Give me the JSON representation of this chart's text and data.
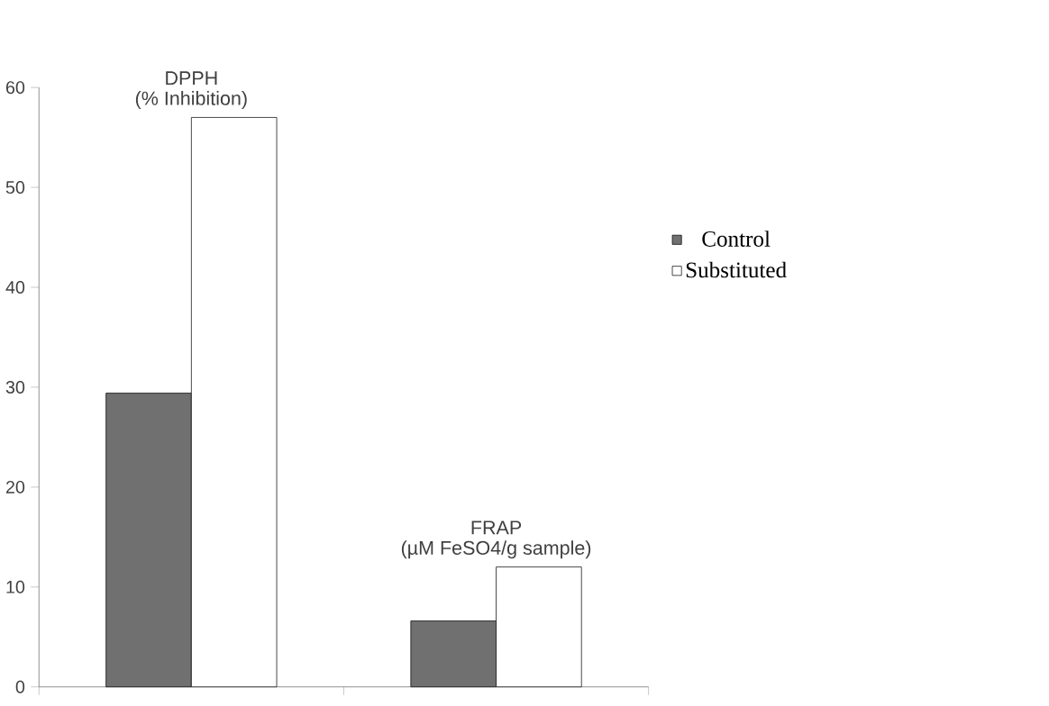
{
  "chart_data": {
    "type": "bar",
    "categories": [
      "DPPH",
      "FRAP"
    ],
    "series": [
      {
        "name": "Control",
        "color": "#707070",
        "values": [
          29.4,
          6.6
        ]
      },
      {
        "name": "Substituted",
        "color": "#ffffff",
        "values": [
          57.0,
          12.0
        ]
      }
    ],
    "annotations": [
      {
        "text": "(% Inhibition)",
        "x": "DPPH",
        "y": 57.0
      },
      {
        "text": "(µM FeSO4/g sample)",
        "x": "FRAP",
        "y": 12.0
      }
    ],
    "ylim": [
      0,
      60
    ],
    "yticks": [
      0,
      10,
      20,
      30,
      40,
      50,
      60
    ],
    "legend": "right",
    "grid": false
  }
}
